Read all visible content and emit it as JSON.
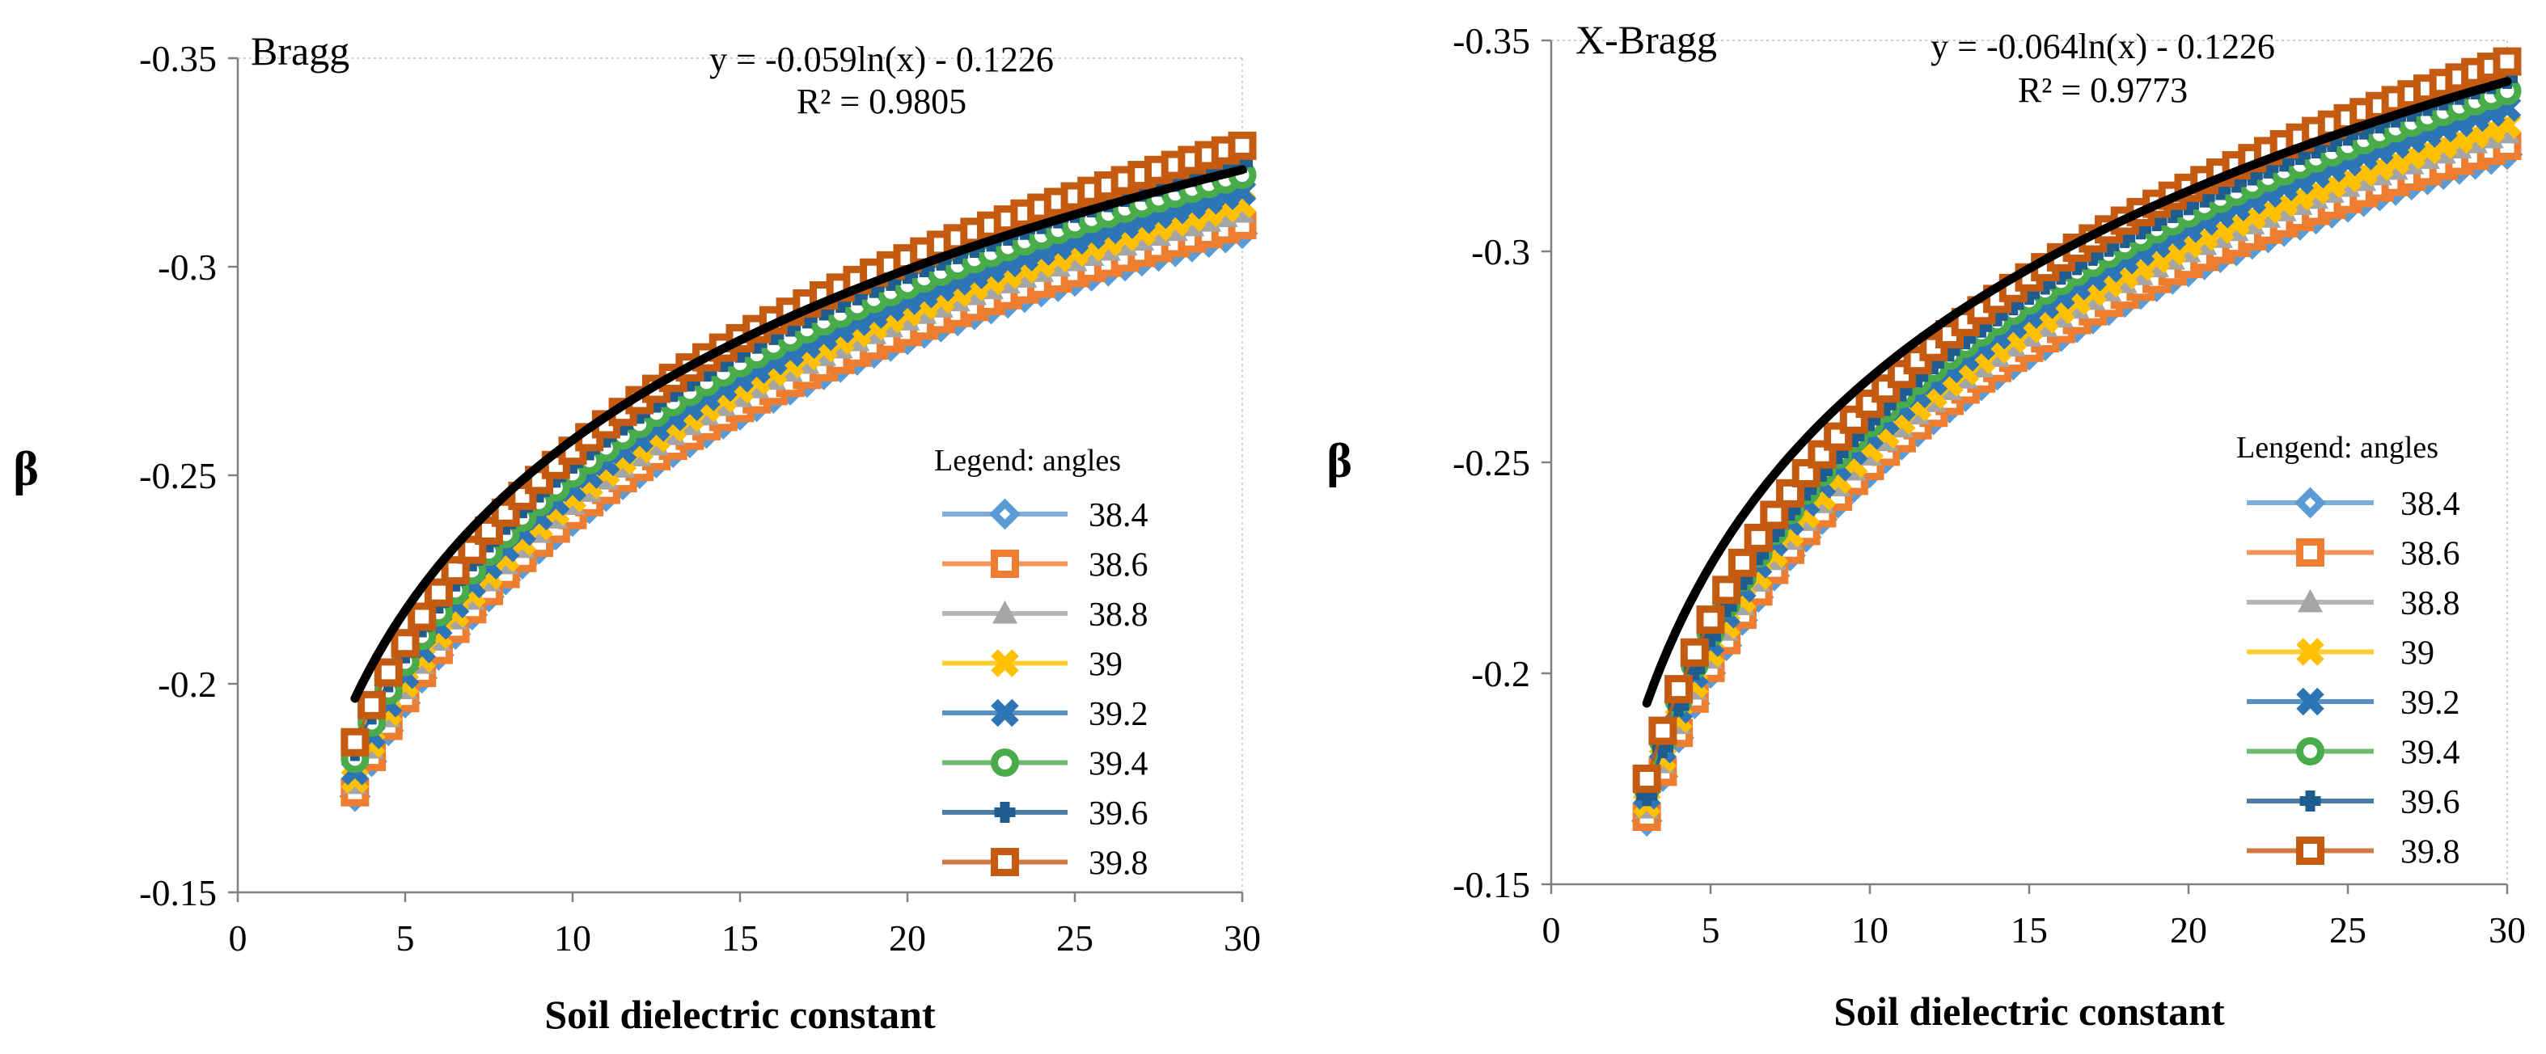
{
  "chart_data": [
    {
      "type": "scatter",
      "title": "Bragg",
      "xlabel": "Soil dielectric constant",
      "ylabel": "β",
      "xlim": [
        0,
        30
      ],
      "ylim": [
        -0.15,
        -0.35
      ],
      "x_ticks": [
        "0",
        "5",
        "10",
        "15",
        "20",
        "25",
        "30"
      ],
      "y_ticks": [
        "-0.35",
        "-0.3",
        "-0.25",
        "-0.2",
        "-0.15"
      ],
      "y_reversed": true,
      "grid": false,
      "legend_title": "Legend: angles",
      "legend_position": "right",
      "x": [
        3.5,
        4,
        4.5,
        5,
        5.5,
        6,
        6.5,
        7,
        7.5,
        8,
        8.5,
        9,
        9.5,
        10,
        10.5,
        11,
        11.5,
        12,
        12.5,
        13,
        13.5,
        14,
        14.5,
        15,
        15.5,
        16,
        16.5,
        17,
        17.5,
        18,
        18.5,
        19,
        19.5,
        20,
        20.5,
        21,
        21.5,
        22,
        22.5,
        23,
        23.5,
        24,
        24.5,
        25,
        25.5,
        26,
        26.5,
        27,
        27.5,
        28,
        28.5,
        29,
        29.5,
        30
      ],
      "series": [
        {
          "name": "38.4",
          "color": "#5b9bd5",
          "marker": "diamond",
          "y0": -0.173,
          "y30": -0.308
        },
        {
          "name": "38.6",
          "color": "#ed7d31",
          "marker": "square",
          "y0": -0.174,
          "y30": -0.31
        },
        {
          "name": "38.8",
          "color": "#a5a5a5",
          "marker": "triangle",
          "y0": -0.176,
          "y30": -0.313
        },
        {
          "name": "39",
          "color": "#ffc000",
          "marker": "x",
          "y0": -0.177,
          "y30": -0.315
        },
        {
          "name": "39.2",
          "color": "#2e75b6",
          "marker": "x",
          "y0": -0.179,
          "y30": -0.318
        },
        {
          "name": "39.4",
          "color": "#4aab4a",
          "marker": "circle",
          "y0": -0.182,
          "y30": -0.322
        },
        {
          "name": "39.6",
          "color": "#1f5c8f",
          "marker": "plus",
          "y0": -0.184,
          "y30": -0.325
        },
        {
          "name": "39.8",
          "color": "#c55a11",
          "marker": "square",
          "y0": -0.186,
          "y30": -0.329
        }
      ],
      "trendline": {
        "equation": "y = -0.059ln(x) - 0.1226",
        "r2": "R² = 0.9805",
        "a": -0.059,
        "b": -0.1226,
        "color": "#000000",
        "x_range": [
          3.5,
          30
        ]
      }
    },
    {
      "type": "scatter",
      "title": "X-Bragg",
      "xlabel": "Soil dielectric constant",
      "ylabel": "β",
      "xlim": [
        0,
        30
      ],
      "ylim": [
        -0.15,
        -0.35
      ],
      "x_ticks": [
        "0",
        "5",
        "10",
        "15",
        "20",
        "25",
        "30"
      ],
      "y_ticks": [
        "-0.35",
        "-0.3",
        "-0.25",
        "-0.2",
        "-0.15"
      ],
      "y_reversed": true,
      "grid": false,
      "legend_title": "Lengend: angles",
      "legend_position": "right",
      "x": [
        3,
        3.5,
        4,
        4.5,
        5,
        5.5,
        6,
        6.5,
        7,
        7.5,
        8,
        8.5,
        9,
        9.5,
        10,
        10.5,
        11,
        11.5,
        12,
        12.5,
        13,
        13.5,
        14,
        14.5,
        15,
        15.5,
        16,
        16.5,
        17,
        17.5,
        18,
        18.5,
        19,
        19.5,
        20,
        20.5,
        21,
        21.5,
        22,
        22.5,
        23,
        23.5,
        24,
        24.5,
        25,
        25.5,
        26,
        26.5,
        27,
        27.5,
        28,
        28.5,
        29,
        29.5,
        30
      ],
      "series": [
        {
          "name": "38.4",
          "color": "#5b9bd5",
          "marker": "diamond",
          "y0": -0.165,
          "y30": -0.323
        },
        {
          "name": "38.6",
          "color": "#ed7d31",
          "marker": "square",
          "y0": -0.166,
          "y30": -0.325
        },
        {
          "name": "38.8",
          "color": "#a5a5a5",
          "marker": "triangle",
          "y0": -0.168,
          "y30": -0.328
        },
        {
          "name": "39",
          "color": "#ffc000",
          "marker": "x",
          "y0": -0.169,
          "y30": -0.33
        },
        {
          "name": "39.2",
          "color": "#2e75b6",
          "marker": "x",
          "y0": -0.171,
          "y30": -0.334
        },
        {
          "name": "39.4",
          "color": "#4aab4a",
          "marker": "circle",
          "y0": -0.173,
          "y30": -0.338
        },
        {
          "name": "39.6",
          "color": "#1f5c8f",
          "marker": "plus",
          "y0": -0.171,
          "y30": -0.341
        },
        {
          "name": "39.8",
          "color": "#c55a11",
          "marker": "square",
          "y0": -0.175,
          "y30": -0.345
        }
      ],
      "trendline": {
        "equation": "y = -0.064ln(x) - 0.1226",
        "r2": "R² = 0.9773",
        "a": -0.064,
        "b": -0.1226,
        "color": "#000000",
        "x_range": [
          3,
          30
        ]
      }
    }
  ]
}
